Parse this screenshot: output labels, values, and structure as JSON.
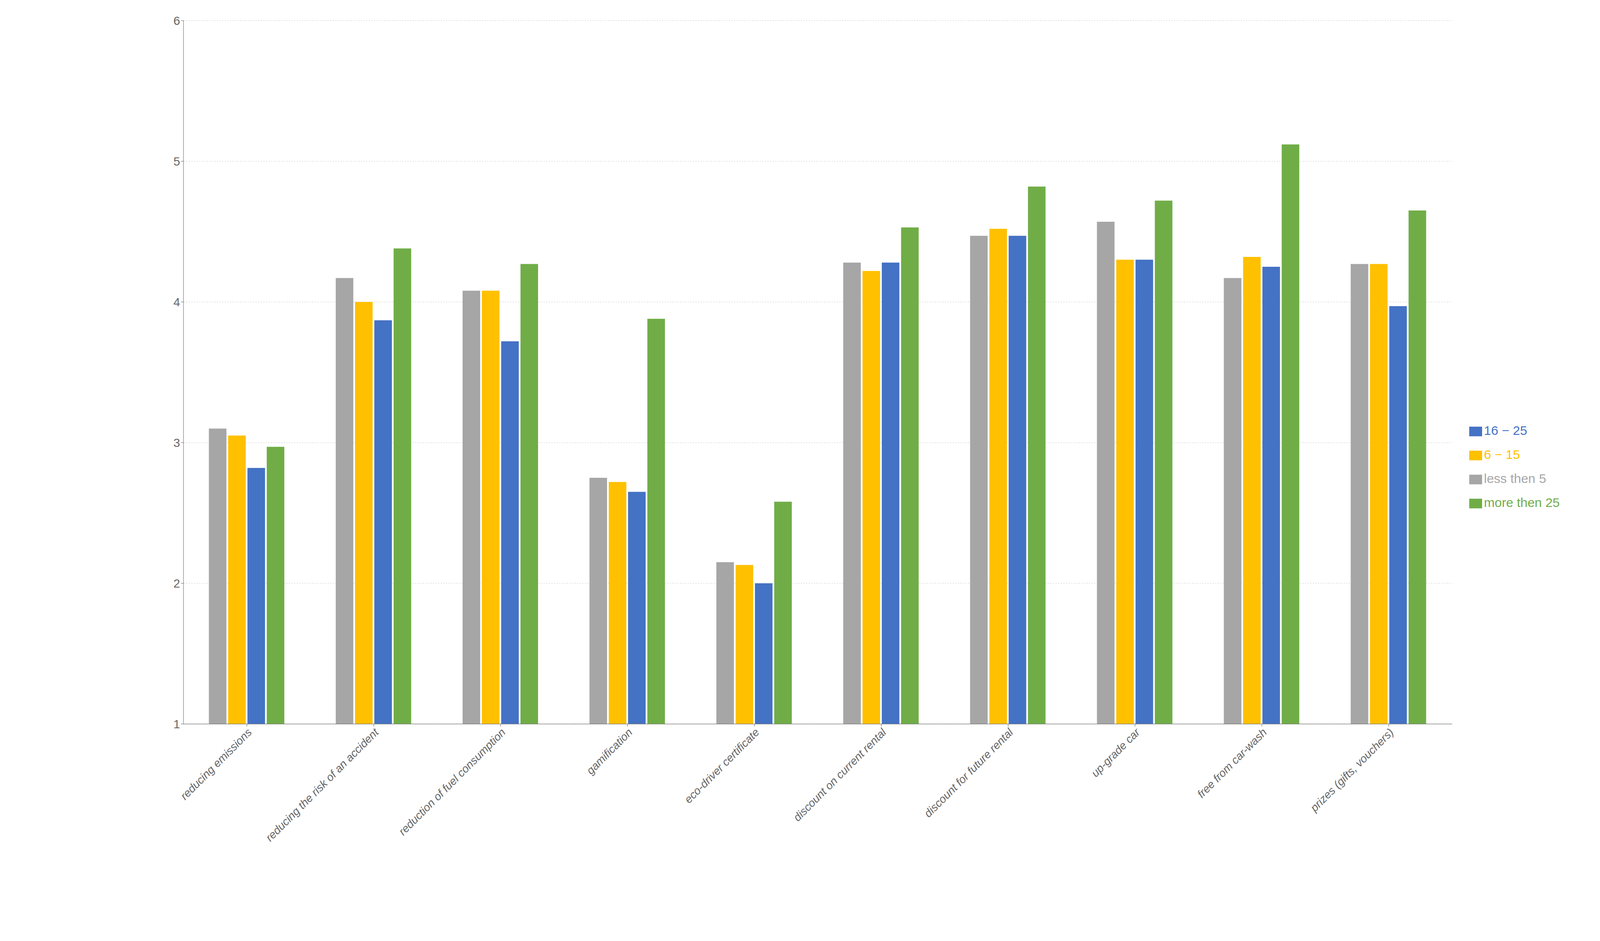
{
  "chart_data": {
    "type": "bar",
    "categories": [
      "reducing emissions",
      "reducing the risk of an accident",
      "reduction of fuel consumption",
      "gamification",
      "eco-driver certificate",
      "discount on current rental",
      "discount for future rental",
      "up-grade car",
      "free from car-wash",
      "prizes (gifts, vouchers)"
    ],
    "series": [
      {
        "name": "less then 5",
        "color": "#a6a6a6",
        "values": [
          3.1,
          4.17,
          4.08,
          2.75,
          2.15,
          4.28,
          4.47,
          4.57,
          4.17,
          4.27
        ]
      },
      {
        "name": "6 − 15",
        "color": "#ffc000",
        "values": [
          3.05,
          4.0,
          4.08,
          2.72,
          2.13,
          4.22,
          4.52,
          4.3,
          4.32,
          4.27
        ]
      },
      {
        "name": "16 − 25",
        "color": "#4472c4",
        "values": [
          2.82,
          3.87,
          3.72,
          2.65,
          2.0,
          4.28,
          4.47,
          4.3,
          4.25,
          3.97
        ]
      },
      {
        "name": "more then 25",
        "color": "#70ad47",
        "values": [
          2.97,
          4.38,
          4.27,
          3.88,
          2.58,
          4.53,
          4.82,
          4.72,
          5.12,
          4.65
        ]
      }
    ],
    "ylim": [
      1,
      6
    ],
    "yticks": [
      1,
      2,
      3,
      4,
      5,
      6
    ],
    "grid": true,
    "legend": "right"
  }
}
